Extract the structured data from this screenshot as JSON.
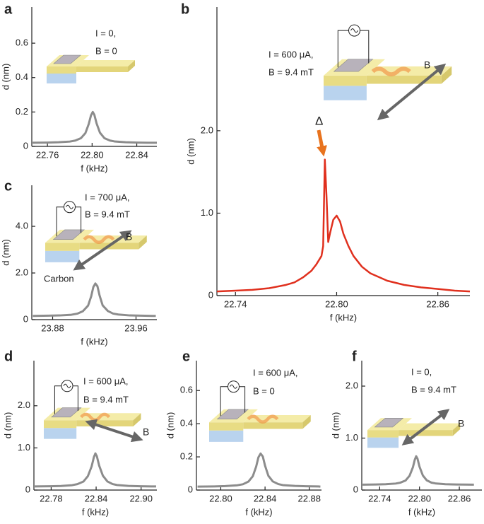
{
  "chart_data": [
    {
      "type": "line",
      "label": "a",
      "xlabel": "f (kHz)",
      "ylabel": "d (nm)",
      "color": "#8c8c8c",
      "annotations": [
        "I = 0,",
        "B = 0"
      ],
      "xlim": [
        22.746,
        22.858
      ],
      "ylim": [
        0,
        0.81
      ],
      "xticks": [
        22.76,
        {
          "value": 22.8,
          "label": "22.80"
        },
        22.84
      ],
      "yticks": [
        0,
        0.2,
        0.4,
        0.6
      ],
      "x": [
        22.746,
        22.76,
        22.77,
        22.78,
        22.785,
        22.79,
        22.794,
        22.797,
        22.799,
        22.8006,
        22.802,
        22.804,
        22.807,
        22.811,
        22.816,
        22.82,
        22.83,
        22.84,
        22.85,
        22.858
      ],
      "values": [
        0.021,
        0.022,
        0.024,
        0.028,
        0.034,
        0.048,
        0.077,
        0.13,
        0.18,
        0.2,
        0.184,
        0.134,
        0.08,
        0.048,
        0.034,
        0.029,
        0.024,
        0.022,
        0.021,
        0.021
      ]
    },
    {
      "type": "line",
      "label": "b",
      "xlabel": "f (kHz)",
      "ylabel": "d (nm)",
      "color": "#e0301e",
      "annotations": [
        "I = 600 μA,",
        "B = 9.4 mT",
        "B",
        "Δ"
      ],
      "xlim": [
        22.729,
        22.879
      ],
      "ylim": [
        0,
        3.5
      ],
      "xticks": [
        22.74,
        {
          "value": 22.8,
          "label": "22.80"
        },
        22.86
      ],
      "yticks": [
        0,
        {
          "value": 1,
          "label": "1.0"
        },
        {
          "value": 2,
          "label": "2.0"
        }
      ],
      "x": [
        22.729,
        22.74,
        22.75,
        22.76,
        22.77,
        22.775,
        22.78,
        22.785,
        22.788,
        22.791,
        22.792,
        22.793,
        22.794,
        22.795,
        22.796,
        22.798,
        22.8,
        22.802,
        22.804,
        22.807,
        22.81,
        22.815,
        22.82,
        22.83,
        22.84,
        22.85,
        22.86,
        22.87,
        22.879
      ],
      "values": [
        0.05,
        0.06,
        0.07,
        0.09,
        0.13,
        0.16,
        0.22,
        0.3,
        0.38,
        0.48,
        0.6,
        1.65,
        1.2,
        0.65,
        0.75,
        0.92,
        0.97,
        0.9,
        0.75,
        0.6,
        0.48,
        0.35,
        0.27,
        0.18,
        0.13,
        0.1,
        0.08,
        0.06,
        0.05
      ]
    },
    {
      "type": "line",
      "label": "c",
      "xlabel": "f (kHz)",
      "ylabel": "d (nm)",
      "color": "#8c8c8c",
      "annotations": [
        "I = 700 μA,",
        "B = 9.4 mT",
        "B",
        "Carbon"
      ],
      "xlim": [
        23.86,
        23.98
      ],
      "ylim": [
        0,
        5.76
      ],
      "xticks": [
        23.88,
        23.96
      ],
      "yticks": [
        0,
        {
          "value": 2,
          "label": "2.0"
        },
        {
          "value": 4,
          "label": "4.0"
        }
      ],
      "x": [
        23.861,
        23.876,
        23.887,
        23.898,
        23.904,
        23.909,
        23.914,
        23.917,
        23.919,
        23.921,
        23.923,
        23.925,
        23.928,
        23.933,
        23.938,
        23.943,
        23.954,
        23.965,
        23.976,
        23.979
      ],
      "values": [
        0.16,
        0.17,
        0.18,
        0.21,
        0.26,
        0.36,
        0.6,
        1.0,
        1.39,
        1.55,
        1.43,
        1.04,
        0.61,
        0.37,
        0.26,
        0.22,
        0.18,
        0.17,
        0.16,
        0.16
      ]
    },
    {
      "type": "line",
      "label": "d",
      "xlabel": "f (kHz)",
      "ylabel": "d (nm)",
      "color": "#8c8c8c",
      "annotations": [
        "I = 600 μA,",
        "B = 9.4 mT",
        "B"
      ],
      "xlim": [
        22.757,
        22.921
      ],
      "ylim": [
        0,
        3.07
      ],
      "xticks": [
        22.78,
        22.84,
        {
          "value": 22.9,
          "label": "22.90"
        }
      ],
      "yticks": [
        0,
        {
          "value": 1,
          "label": "1.0"
        },
        {
          "value": 2,
          "label": "2.0"
        }
      ],
      "x": [
        22.757,
        22.778,
        22.793,
        22.808,
        22.815,
        22.823,
        22.829,
        22.834,
        22.837,
        22.839,
        22.841,
        22.844,
        22.849,
        22.855,
        22.862,
        22.868,
        22.883,
        22.899,
        22.914,
        22.92
      ],
      "values": [
        0.085,
        0.09,
        0.097,
        0.116,
        0.141,
        0.201,
        0.331,
        0.562,
        0.781,
        0.87,
        0.8,
        0.582,
        0.341,
        0.205,
        0.142,
        0.12,
        0.098,
        0.09,
        0.086,
        0.085
      ]
    },
    {
      "type": "line",
      "label": "e",
      "xlabel": "f (kHz)",
      "ylabel": "d (nm)",
      "color": "#8c8c8c",
      "annotations": [
        "I = 600 μA,",
        "B = 0"
      ],
      "xlim": [
        22.778,
        22.891
      ],
      "ylim": [
        0,
        0.78
      ],
      "xticks": [
        {
          "value": 22.8,
          "label": "22.80"
        },
        22.84,
        22.88
      ],
      "yticks": [
        0,
        0.2,
        0.4,
        0.6
      ],
      "x": [
        22.779,
        22.794,
        22.804,
        22.815,
        22.82,
        22.825,
        22.829,
        22.832,
        22.834,
        22.836,
        22.838,
        22.84,
        22.843,
        22.847,
        22.852,
        22.856,
        22.867,
        22.877,
        22.888,
        22.89
      ],
      "values": [
        0.021,
        0.022,
        0.024,
        0.029,
        0.035,
        0.051,
        0.084,
        0.142,
        0.197,
        0.22,
        0.202,
        0.147,
        0.086,
        0.052,
        0.036,
        0.03,
        0.025,
        0.023,
        0.022,
        0.021
      ]
    },
    {
      "type": "line",
      "label": "f",
      "xlabel": "f (kHz)",
      "ylabel": "d (nm)",
      "color": "#8c8c8c",
      "annotations": [
        "I = 0,",
        "B = 9.4 mT",
        "B"
      ],
      "xlim": [
        22.713,
        22.894
      ],
      "ylim": [
        0,
        2.49
      ],
      "xticks": [
        22.74,
        {
          "value": 22.8,
          "label": "22.80"
        },
        22.86
      ],
      "yticks": [
        0,
        {
          "value": 1,
          "label": "1.0"
        },
        {
          "value": 2,
          "label": "2.0"
        }
      ],
      "x": [
        22.713,
        22.734,
        22.749,
        22.764,
        22.771,
        22.779,
        22.785,
        22.79,
        22.793,
        22.795,
        22.797,
        22.8,
        22.805,
        22.811,
        22.818,
        22.824,
        22.839,
        22.855,
        22.87,
        22.882
      ],
      "values": [
        0.104,
        0.107,
        0.112,
        0.125,
        0.142,
        0.184,
        0.275,
        0.436,
        0.588,
        0.65,
        0.602,
        0.45,
        0.282,
        0.187,
        0.143,
        0.128,
        0.113,
        0.107,
        0.105,
        0.103
      ]
    }
  ]
}
